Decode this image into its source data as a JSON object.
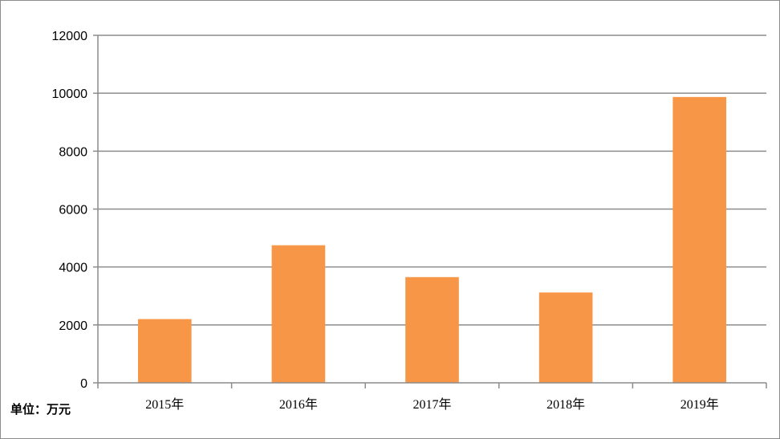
{
  "chart_data": {
    "type": "bar",
    "categories": [
      "2015年",
      "2016年",
      "2017年",
      "2018年",
      "2019年"
    ],
    "values": [
      2200,
      4750,
      3650,
      3120,
      9870
    ],
    "ylim": [
      0,
      12000
    ],
    "yticks": [
      0,
      2000,
      4000,
      6000,
      8000,
      10000,
      12000
    ],
    "unit_label": "单位：万元",
    "bar_color": "#F79646",
    "grid": true,
    "legend": "none"
  }
}
